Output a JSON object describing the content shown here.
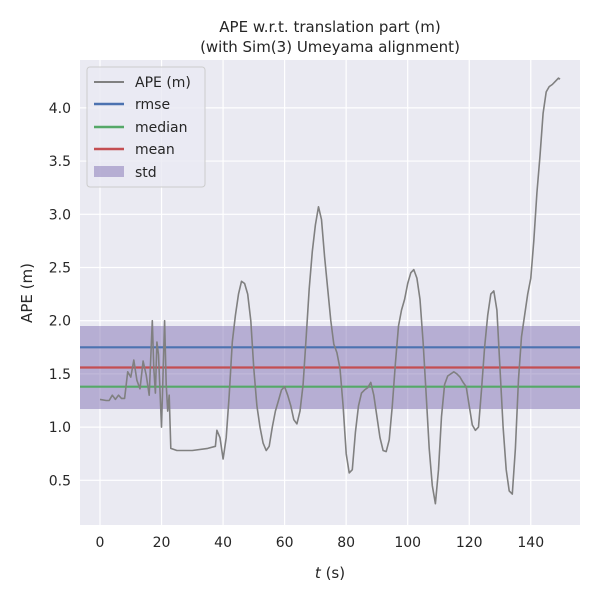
{
  "chart_data": {
    "type": "line",
    "title": "APE w.r.t. translation part (m)\n(with Sim(3) Umeyama alignment)",
    "title_lines": [
      "APE w.r.t. translation part (m)",
      "(with Sim(3) Umeyama alignment)"
    ],
    "xlabel_var": "t",
    "xlabel_unit": " (s)",
    "ylabel": "APE (m)",
    "xlim": [
      -6.5,
      156
    ],
    "ylim": [
      0.08,
      4.45
    ],
    "xticks": [
      0,
      20,
      40,
      60,
      80,
      100,
      120,
      140
    ],
    "yticks": [
      0.5,
      1.0,
      1.5,
      2.0,
      2.5,
      3.0,
      3.5,
      4.0
    ],
    "xtick_labels": [
      "0",
      "20",
      "40",
      "60",
      "80",
      "100",
      "120",
      "140"
    ],
    "ytick_labels": [
      "0.5",
      "1.0",
      "1.5",
      "2.0",
      "2.5",
      "3.0",
      "3.5",
      "4.0"
    ],
    "grid": true,
    "legend_position": "top-left",
    "series": [
      {
        "name": "APE (m)",
        "color": "#808080",
        "points": [
          [
            0,
            1.26
          ],
          [
            2,
            1.25
          ],
          [
            3,
            1.25
          ],
          [
            4,
            1.3
          ],
          [
            5,
            1.26
          ],
          [
            6,
            1.3
          ],
          [
            7,
            1.27
          ],
          [
            8,
            1.27
          ],
          [
            9,
            1.52
          ],
          [
            10,
            1.47
          ],
          [
            11,
            1.63
          ],
          [
            12,
            1.44
          ],
          [
            13,
            1.36
          ],
          [
            14,
            1.62
          ],
          [
            15,
            1.49
          ],
          [
            16,
            1.3
          ],
          [
            17,
            2.0
          ],
          [
            17.5,
            1.55
          ],
          [
            18,
            1.32
          ],
          [
            18.5,
            1.8
          ],
          [
            19,
            1.68
          ],
          [
            20,
            1.0
          ],
          [
            21,
            2.0
          ],
          [
            21.5,
            1.4
          ],
          [
            22,
            1.15
          ],
          [
            22.5,
            1.3
          ],
          [
            23,
            0.8
          ],
          [
            25,
            0.78
          ],
          [
            30,
            0.78
          ],
          [
            35,
            0.8
          ],
          [
            37.5,
            0.82
          ],
          [
            38,
            0.97
          ],
          [
            39,
            0.9
          ],
          [
            40,
            0.7
          ],
          [
            41,
            0.9
          ],
          [
            42,
            1.3
          ],
          [
            43,
            1.8
          ],
          [
            44,
            2.05
          ],
          [
            45,
            2.25
          ],
          [
            46,
            2.37
          ],
          [
            47,
            2.35
          ],
          [
            48,
            2.25
          ],
          [
            49,
            2.0
          ],
          [
            50,
            1.55
          ],
          [
            51,
            1.2
          ],
          [
            52,
            1.0
          ],
          [
            53,
            0.85
          ],
          [
            54,
            0.78
          ],
          [
            55,
            0.82
          ],
          [
            56,
            1.0
          ],
          [
            57,
            1.15
          ],
          [
            58,
            1.25
          ],
          [
            59,
            1.35
          ],
          [
            60,
            1.38
          ],
          [
            61,
            1.3
          ],
          [
            62,
            1.2
          ],
          [
            63,
            1.07
          ],
          [
            64,
            1.03
          ],
          [
            65,
            1.15
          ],
          [
            66,
            1.4
          ],
          [
            67,
            1.85
          ],
          [
            68,
            2.3
          ],
          [
            69,
            2.65
          ],
          [
            70,
            2.9
          ],
          [
            71,
            3.07
          ],
          [
            72,
            2.95
          ],
          [
            73,
            2.6
          ],
          [
            74,
            2.3
          ],
          [
            75,
            2.0
          ],
          [
            76,
            1.78
          ],
          [
            77,
            1.7
          ],
          [
            78,
            1.55
          ],
          [
            79,
            1.2
          ],
          [
            80,
            0.75
          ],
          [
            81,
            0.57
          ],
          [
            82,
            0.6
          ],
          [
            83,
            0.95
          ],
          [
            84,
            1.2
          ],
          [
            85,
            1.32
          ],
          [
            86,
            1.35
          ],
          [
            87,
            1.37
          ],
          [
            88,
            1.42
          ],
          [
            89,
            1.3
          ],
          [
            90,
            1.1
          ],
          [
            91,
            0.9
          ],
          [
            92,
            0.78
          ],
          [
            93,
            0.77
          ],
          [
            94,
            0.88
          ],
          [
            95,
            1.2
          ],
          [
            96,
            1.6
          ],
          [
            97,
            1.95
          ],
          [
            98,
            2.1
          ],
          [
            99,
            2.2
          ],
          [
            100,
            2.35
          ],
          [
            101,
            2.45
          ],
          [
            102,
            2.48
          ],
          [
            103,
            2.4
          ],
          [
            104,
            2.2
          ],
          [
            105,
            1.8
          ],
          [
            106,
            1.3
          ],
          [
            107,
            0.8
          ],
          [
            108,
            0.45
          ],
          [
            109,
            0.28
          ],
          [
            110,
            0.6
          ],
          [
            111,
            1.1
          ],
          [
            112,
            1.4
          ],
          [
            113,
            1.48
          ],
          [
            114,
            1.5
          ],
          [
            115,
            1.52
          ],
          [
            116,
            1.5
          ],
          [
            117,
            1.47
          ],
          [
            118,
            1.42
          ],
          [
            119,
            1.38
          ],
          [
            120,
            1.2
          ],
          [
            121,
            1.02
          ],
          [
            122,
            0.97
          ],
          [
            123,
            1.0
          ],
          [
            124,
            1.35
          ],
          [
            125,
            1.75
          ],
          [
            126,
            2.05
          ],
          [
            127,
            2.25
          ],
          [
            128,
            2.28
          ],
          [
            129,
            2.1
          ],
          [
            130,
            1.55
          ],
          [
            131,
            1.0
          ],
          [
            132,
            0.6
          ],
          [
            133,
            0.4
          ],
          [
            134,
            0.37
          ],
          [
            135,
            0.8
          ],
          [
            136,
            1.45
          ],
          [
            137,
            1.85
          ],
          [
            138,
            2.05
          ],
          [
            139,
            2.25
          ],
          [
            140,
            2.4
          ],
          [
            141,
            2.75
          ],
          [
            142,
            3.2
          ],
          [
            143,
            3.55
          ],
          [
            144,
            3.95
          ],
          [
            145,
            4.15
          ],
          [
            146,
            4.2
          ],
          [
            147,
            4.22
          ],
          [
            148,
            4.25
          ],
          [
            149,
            4.28
          ],
          [
            149.5,
            4.27
          ]
        ]
      },
      {
        "name": "rmse",
        "color": "#4C72B0",
        "value": 1.75
      },
      {
        "name": "median",
        "color": "#55A868",
        "value": 1.38
      },
      {
        "name": "mean",
        "color": "#C44E52",
        "value": 1.56
      }
    ],
    "band": {
      "name": "std",
      "color": "#8172B3",
      "low": 1.17,
      "high": 1.95
    }
  }
}
